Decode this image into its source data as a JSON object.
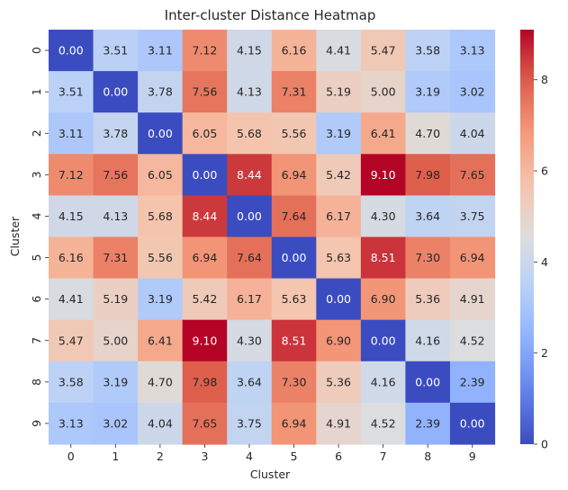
{
  "chart_data": {
    "type": "heatmap",
    "title": "Inter-cluster Distance Heatmap",
    "xlabel": "Cluster",
    "ylabel": "Cluster",
    "x_categories": [
      "0",
      "1",
      "2",
      "3",
      "4",
      "5",
      "6",
      "7",
      "8",
      "9"
    ],
    "y_categories": [
      "0",
      "1",
      "2",
      "3",
      "4",
      "5",
      "6",
      "7",
      "8",
      "9"
    ],
    "values": [
      [
        0.0,
        3.51,
        3.11,
        7.12,
        4.15,
        6.16,
        4.41,
        5.47,
        3.58,
        3.13
      ],
      [
        3.51,
        0.0,
        3.78,
        7.56,
        4.13,
        7.31,
        5.19,
        5.0,
        3.19,
        3.02
      ],
      [
        3.11,
        3.78,
        0.0,
        6.05,
        5.68,
        5.56,
        3.19,
        6.41,
        4.7,
        4.04
      ],
      [
        7.12,
        7.56,
        6.05,
        0.0,
        8.44,
        6.94,
        5.42,
        9.1,
        7.98,
        7.65
      ],
      [
        4.15,
        4.13,
        5.68,
        8.44,
        0.0,
        7.64,
        6.17,
        4.3,
        3.64,
        3.75
      ],
      [
        6.16,
        7.31,
        5.56,
        6.94,
        7.64,
        0.0,
        5.63,
        8.51,
        7.3,
        6.94
      ],
      [
        4.41,
        5.19,
        3.19,
        5.42,
        6.17,
        5.63,
        0.0,
        6.9,
        5.36,
        4.91
      ],
      [
        5.47,
        5.0,
        6.41,
        9.1,
        4.3,
        8.51,
        6.9,
        0.0,
        4.16,
        4.52
      ],
      [
        3.58,
        3.19,
        4.7,
        7.98,
        3.64,
        7.3,
        5.36,
        4.16,
        0.0,
        2.39
      ],
      [
        3.13,
        3.02,
        4.04,
        7.65,
        3.75,
        6.94,
        4.91,
        4.52,
        2.39,
        0.0
      ]
    ],
    "value_range": [
      0,
      9.1
    ],
    "colormap": "coolwarm",
    "colorbar_ticks": [
      "0",
      "2",
      "4",
      "6",
      "8"
    ],
    "grid": false,
    "legend": "colorbar-right"
  }
}
